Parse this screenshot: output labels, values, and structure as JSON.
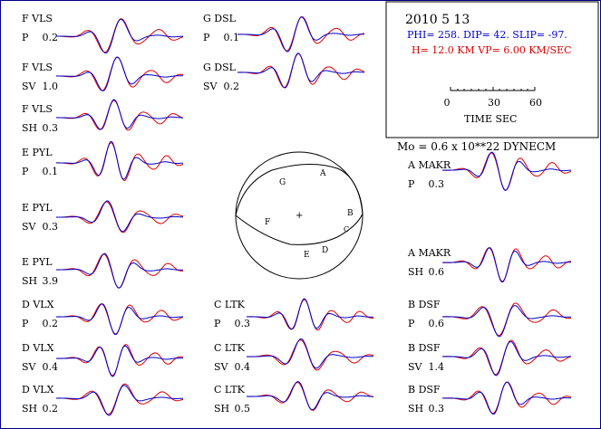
{
  "header": {
    "date": "2010  5 13",
    "params": "PHI= 258. DIP= 42. SLIP= -97.",
    "depth": "H= 12.0 KM  VP= 6.00 KM/SEC",
    "scale_ticks": [
      "0",
      "30",
      "60"
    ],
    "scale_label": "TIME  SEC",
    "moment": "Mo =  0.6 x 10**22 DYNECM"
  },
  "colors": {
    "observed": "#0000cc",
    "synthetic": "#dd0000",
    "frame": "#000080"
  },
  "stations": [
    {
      "id": "F-VLS-P",
      "station": "F VLS",
      "phase": "P",
      "amp": "0.2"
    },
    {
      "id": "F-VLS-SV",
      "station": "F VLS",
      "phase": "SV",
      "amp": "1.0"
    },
    {
      "id": "F-VLS-SH",
      "station": "F VLS",
      "phase": "SH",
      "amp": "0.3"
    },
    {
      "id": "E-PYL-P",
      "station": "E PYL",
      "phase": "P",
      "amp": "0.1"
    },
    {
      "id": "E-PYL-SV",
      "station": "E PYL",
      "phase": "SV",
      "amp": "0.3"
    },
    {
      "id": "E-PYL-SH",
      "station": "E PYL",
      "phase": "SH",
      "amp": "3.9"
    },
    {
      "id": "D-VLX-P",
      "station": "D VLX",
      "phase": "P",
      "amp": "0.2"
    },
    {
      "id": "D-VLX-SV",
      "station": "D VLX",
      "phase": "SV",
      "amp": "0.4"
    },
    {
      "id": "D-VLX-SH",
      "station": "D VLX",
      "phase": "SH",
      "amp": "0.2"
    },
    {
      "id": "G-DSL-P",
      "station": "G DSL",
      "phase": "P",
      "amp": "0.1"
    },
    {
      "id": "G-DSL-SV",
      "station": "G DSL",
      "phase": "SV",
      "amp": "0.2"
    },
    {
      "id": "C-LTK-P",
      "station": "C LTK",
      "phase": "P",
      "amp": "0.3"
    },
    {
      "id": "C-LTK-SV",
      "station": "C LTK",
      "phase": "SV",
      "amp": "0.4"
    },
    {
      "id": "C-LTK-SH",
      "station": "C LTK",
      "phase": "SH",
      "amp": "0.5"
    },
    {
      "id": "A-MAKR-P",
      "station": "A MAKR",
      "phase": "P",
      "amp": "0.3"
    },
    {
      "id": "A-MAKR-SH",
      "station": "A MAKR",
      "phase": "SH",
      "amp": "0.6"
    },
    {
      "id": "B-DSF-P",
      "station": "B DSF",
      "phase": "P",
      "amp": "0.6"
    },
    {
      "id": "B-DSF-SV",
      "station": "B DSF",
      "phase": "SV",
      "amp": "1.4"
    },
    {
      "id": "B-DSF-SH",
      "station": "B DSF",
      "phase": "SH",
      "amp": "0.3"
    }
  ],
  "beachball": {
    "labels": [
      "G",
      "A",
      "F",
      "B",
      "C",
      "D",
      "E"
    ],
    "center_mark": "+"
  }
}
